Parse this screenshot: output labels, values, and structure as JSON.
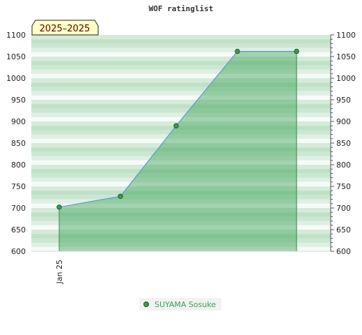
{
  "chart_data": {
    "type": "area",
    "title": "WOF ratinglist",
    "period_label": "2025–2025",
    "x_tick_labels": [
      "Jan 25"
    ],
    "series": [
      {
        "name": "SUYAMA Sosuke",
        "values": [
          702,
          727,
          890,
          1062,
          1062
        ]
      }
    ],
    "ylim": [
      600,
      1100
    ],
    "y_major_ticks": [
      600,
      650,
      700,
      750,
      800,
      850,
      900,
      950,
      1000,
      1050,
      1100
    ],
    "y_minor_step": 10,
    "legend_position": "bottom",
    "colors": {
      "fill": "#3aa055",
      "line": "#5a9bd5",
      "edge": "#2f8a47",
      "marker": "#3b9a4e",
      "marker_edge": "#1d5a2a",
      "band_dark": "#bfe1c6",
      "band_light": "#ecf7ef",
      "label_box": "#ffffc8"
    }
  }
}
